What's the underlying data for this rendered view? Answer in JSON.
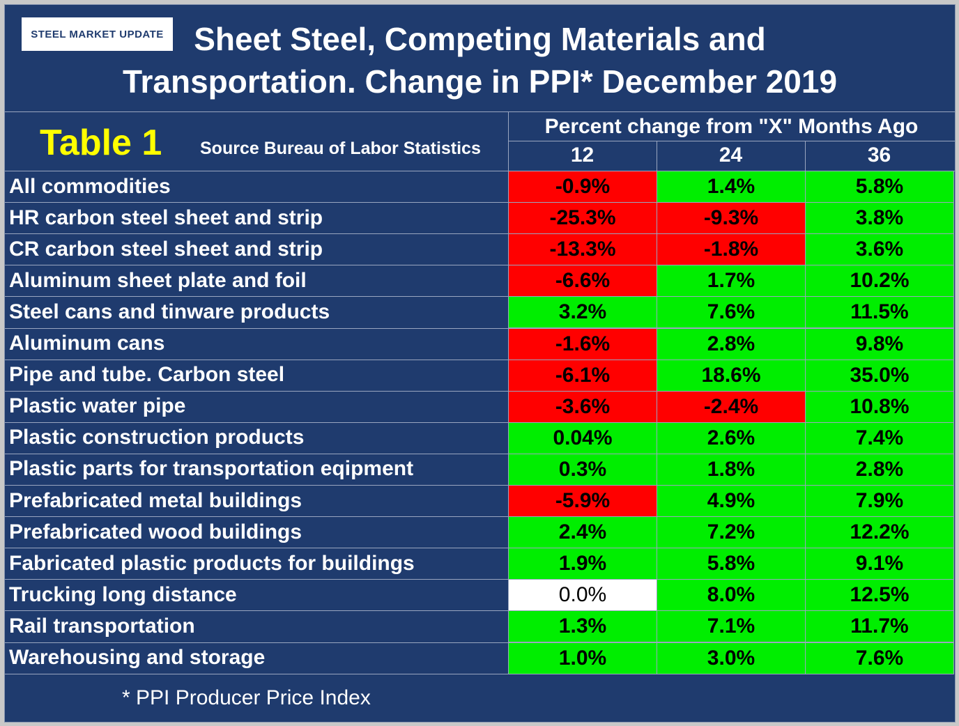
{
  "header": {
    "logo": "STEEL MARKET UPDATE",
    "title_lines": [
      "Sheet Steel, Competing Materials and",
      "Transportation. Change in PPI* December 2019"
    ]
  },
  "table": {
    "label": "Table 1",
    "source": "Source Bureau of Labor Statistics",
    "column_group": "Percent change from \"X\" Months Ago",
    "columns": [
      "12",
      "24",
      "36"
    ],
    "rows": [
      {
        "label": "All commodities",
        "cells": [
          {
            "text": "-0.9%",
            "color": "#ff0000"
          },
          {
            "text": "1.4%",
            "color": "#00ee00"
          },
          {
            "text": "5.8%",
            "color": "#00ee00"
          }
        ]
      },
      {
        "label": "HR carbon steel sheet and strip",
        "cells": [
          {
            "text": "-25.3%",
            "color": "#ff0000"
          },
          {
            "text": "-9.3%",
            "color": "#ff0000"
          },
          {
            "text": "3.8%",
            "color": "#00ee00"
          }
        ]
      },
      {
        "label": "CR carbon steel sheet and strip",
        "cells": [
          {
            "text": "-13.3%",
            "color": "#ff0000"
          },
          {
            "text": "-1.8%",
            "color": "#ff0000"
          },
          {
            "text": "3.6%",
            "color": "#00ee00"
          }
        ]
      },
      {
        "label": "Aluminum sheet plate and foil",
        "cells": [
          {
            "text": "-6.6%",
            "color": "#ff0000"
          },
          {
            "text": "1.7%",
            "color": "#00ee00"
          },
          {
            "text": "10.2%",
            "color": "#00ee00"
          }
        ]
      },
      {
        "label": "Steel cans and tinware products",
        "cells": [
          {
            "text": "3.2%",
            "color": "#00ee00"
          },
          {
            "text": "7.6%",
            "color": "#00ee00"
          },
          {
            "text": "11.5%",
            "color": "#00ee00"
          }
        ]
      },
      {
        "label": "Aluminum cans",
        "cells": [
          {
            "text": "-1.6%",
            "color": "#ff0000"
          },
          {
            "text": "2.8%",
            "color": "#00ee00"
          },
          {
            "text": "9.8%",
            "color": "#00ee00"
          }
        ]
      },
      {
        "label": "Pipe and tube. Carbon steel",
        "cells": [
          {
            "text": "-6.1%",
            "color": "#ff0000"
          },
          {
            "text": "18.6%",
            "color": "#00ee00"
          },
          {
            "text": "35.0%",
            "color": "#00ee00"
          }
        ]
      },
      {
        "label": "Plastic water pipe",
        "cells": [
          {
            "text": "-3.6%",
            "color": "#ff0000"
          },
          {
            "text": "-2.4%",
            "color": "#ff0000"
          },
          {
            "text": "10.8%",
            "color": "#00ee00"
          }
        ]
      },
      {
        "label": "Plastic construction products",
        "cells": [
          {
            "text": "0.04%",
            "color": "#00ee00"
          },
          {
            "text": "2.6%",
            "color": "#00ee00"
          },
          {
            "text": "7.4%",
            "color": "#00ee00"
          }
        ]
      },
      {
        "label": "Plastic parts for transportation eqipment",
        "cells": [
          {
            "text": "0.3%",
            "color": "#00ee00"
          },
          {
            "text": "1.8%",
            "color": "#00ee00"
          },
          {
            "text": "2.8%",
            "color": "#00ee00"
          }
        ]
      },
      {
        "label": "Prefabricated metal buildings",
        "cells": [
          {
            "text": "-5.9%",
            "color": "#ff0000"
          },
          {
            "text": "4.9%",
            "color": "#00ee00"
          },
          {
            "text": "7.9%",
            "color": "#00ee00"
          }
        ]
      },
      {
        "label": "Prefabricated wood buildings",
        "cells": [
          {
            "text": "2.4%",
            "color": "#00ee00"
          },
          {
            "text": "7.2%",
            "color": "#00ee00"
          },
          {
            "text": "12.2%",
            "color": "#00ee00"
          }
        ]
      },
      {
        "label": "Fabricated plastic products for buildings",
        "cells": [
          {
            "text": "1.9%",
            "color": "#00ee00"
          },
          {
            "text": "5.8%",
            "color": "#00ee00"
          },
          {
            "text": "9.1%",
            "color": "#00ee00"
          }
        ]
      },
      {
        "label": "Trucking long distance",
        "cells": [
          {
            "text": "0.0%",
            "color": "#ffffff"
          },
          {
            "text": "8.0%",
            "color": "#00ee00"
          },
          {
            "text": "12.5%",
            "color": "#00ee00"
          }
        ]
      },
      {
        "label": "Rail transportation",
        "cells": [
          {
            "text": "1.3%",
            "color": "#00ee00"
          },
          {
            "text": "7.1%",
            "color": "#00ee00"
          },
          {
            "text": "11.7%",
            "color": "#00ee00"
          }
        ]
      },
      {
        "label": "Warehousing and storage",
        "cells": [
          {
            "text": "1.0%",
            "color": "#00ee00"
          },
          {
            "text": "3.0%",
            "color": "#00ee00"
          },
          {
            "text": "7.6%",
            "color": "#00ee00"
          }
        ]
      }
    ]
  },
  "footer": {
    "note": "* PPI  Producer Price Index"
  }
}
